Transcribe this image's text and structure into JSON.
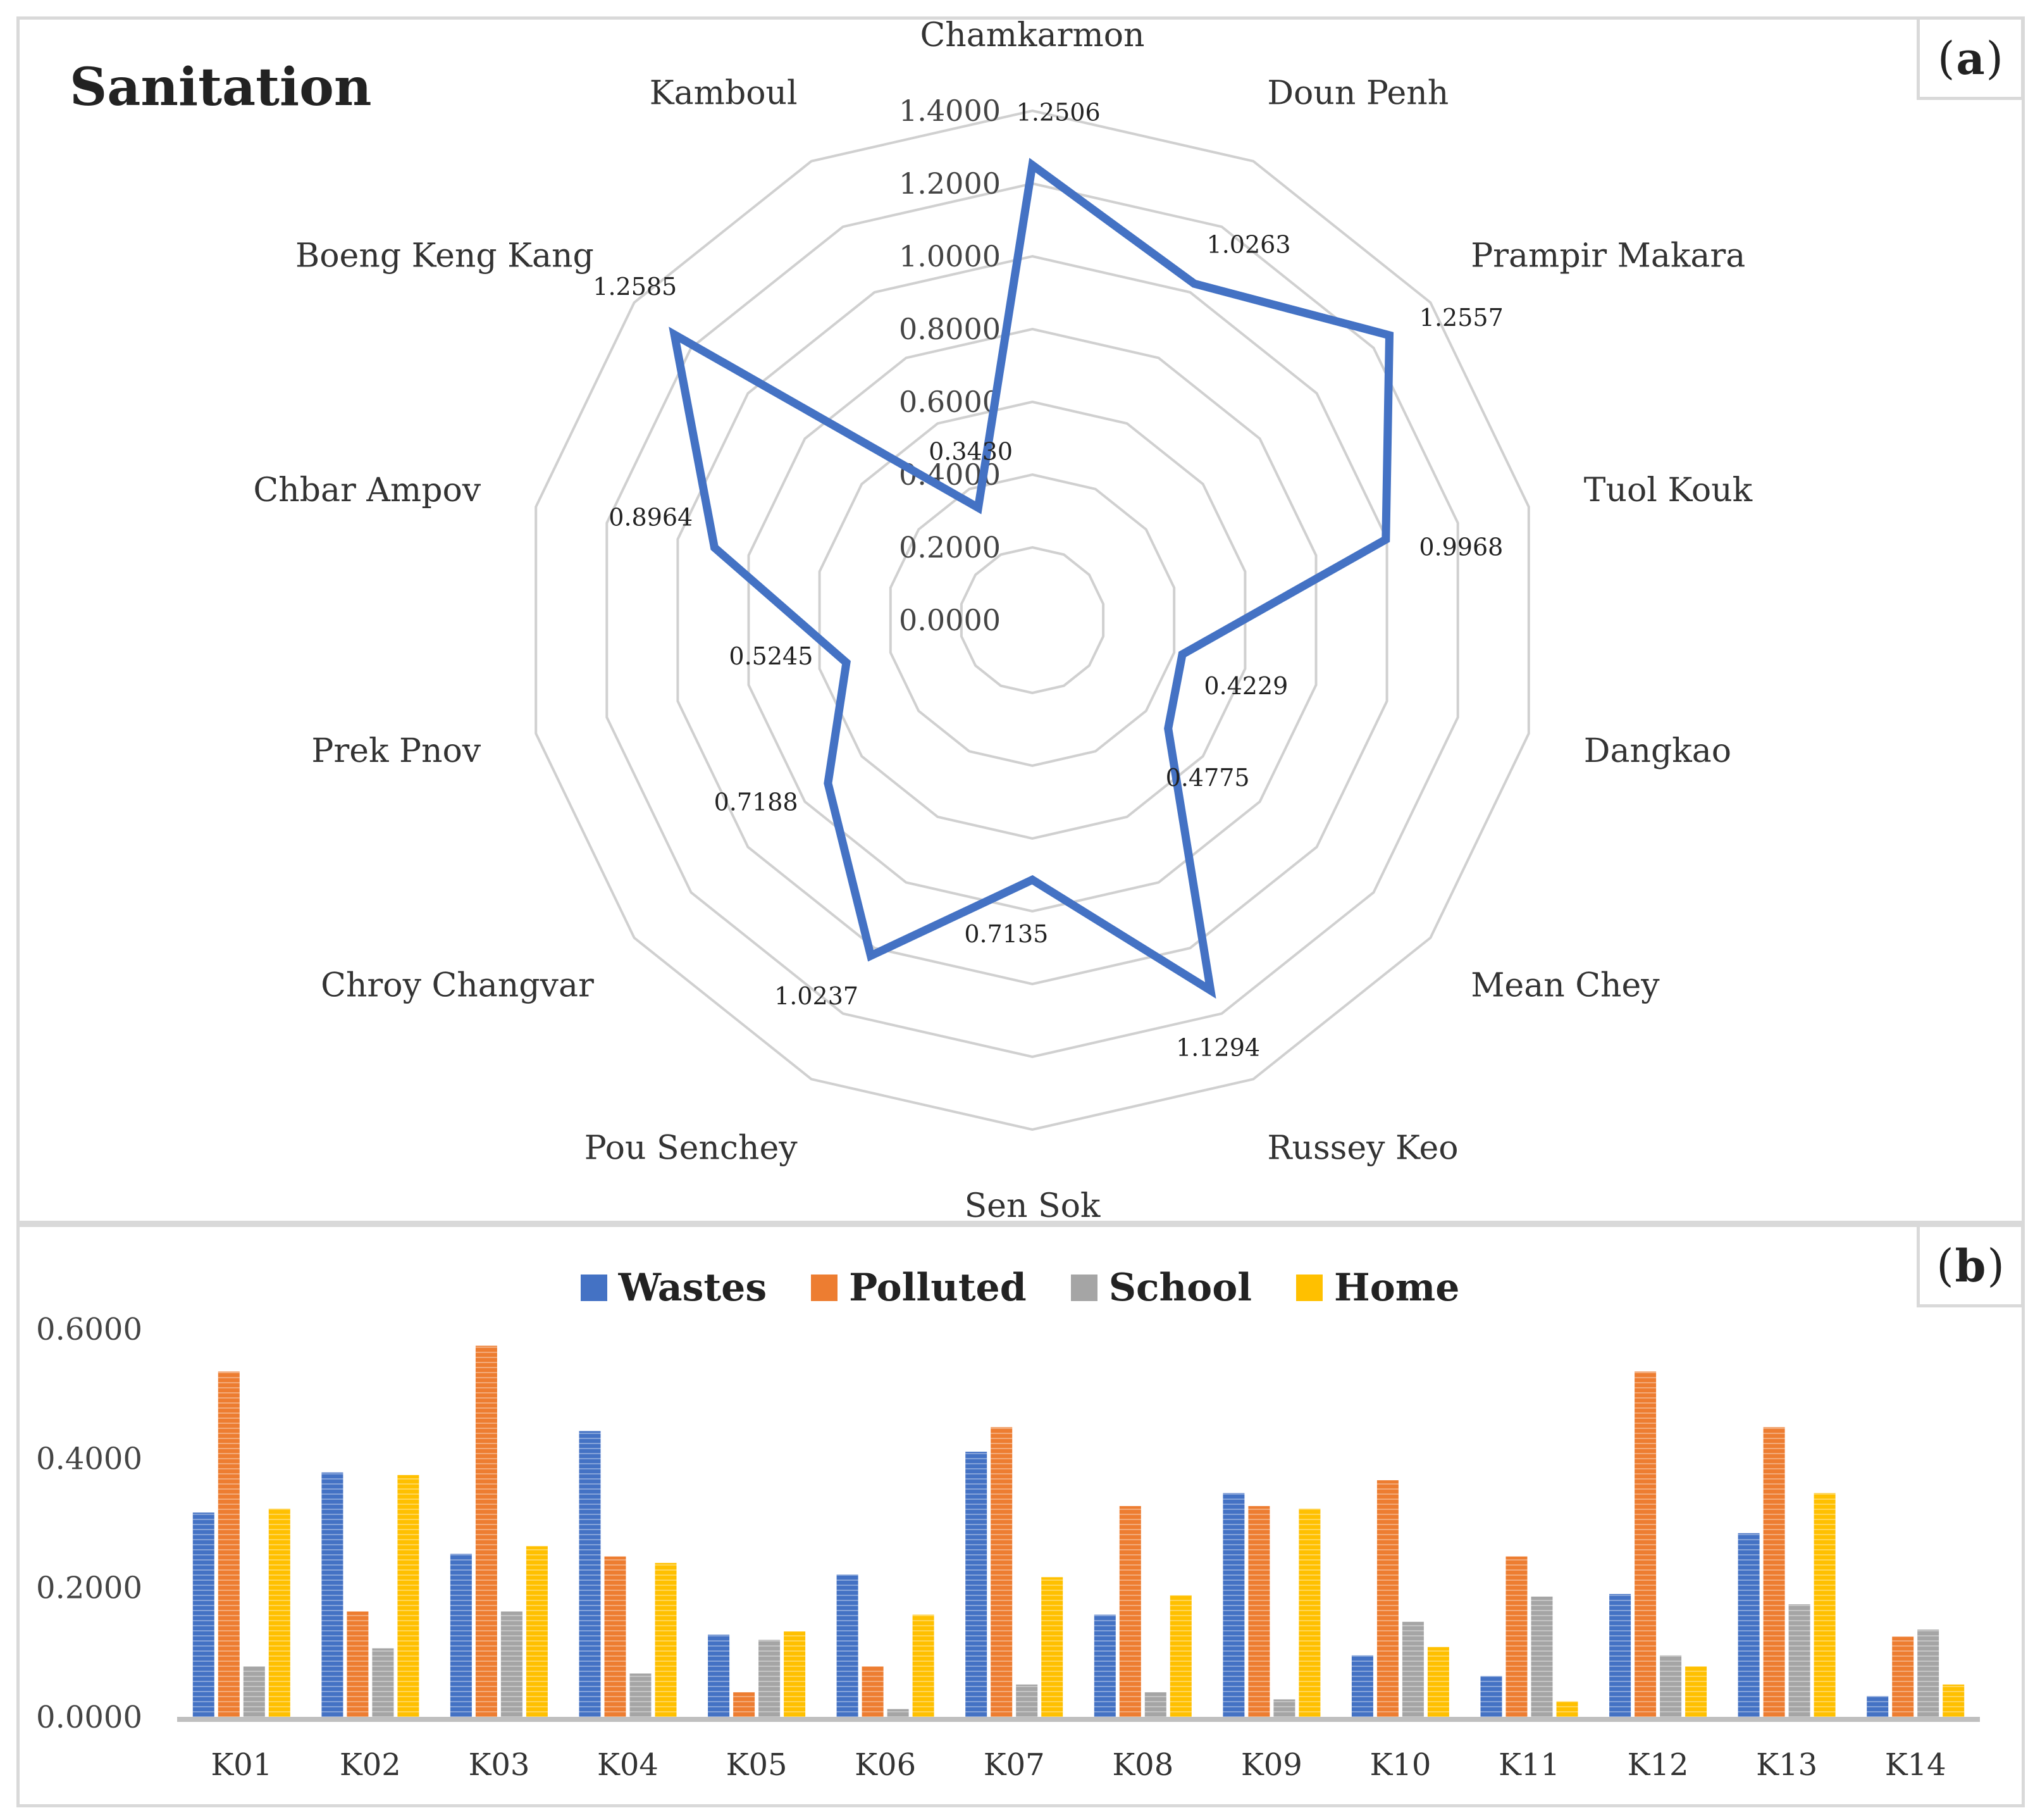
{
  "panels": {
    "a": {
      "tag": "a",
      "title": "Sanitation"
    },
    "b": {
      "tag": "b"
    }
  },
  "chart_data": [
    {
      "type": "radar",
      "title": "Sanitation",
      "rmax": 1.4,
      "ticks": [
        "0.0000",
        "0.2000",
        "0.4000",
        "0.6000",
        "0.8000",
        "1.0000",
        "1.2000",
        "1.4000"
      ],
      "categories": [
        "Chamkarmon",
        "Doun Penh",
        "Prampir Makara",
        "Tuol Kouk",
        "Dangkao",
        "Mean Chey",
        "Russey Keo",
        "Sen Sok",
        "Pou Senchey",
        "Chroy Changvar",
        "Prek Pnov",
        "Chbar Ampov",
        "Boeng Keng Kang",
        "Kamboul"
      ],
      "values": [
        1.2506,
        1.0263,
        1.2557,
        0.9968,
        0.4229,
        0.4775,
        1.1294,
        0.7135,
        1.0237,
        0.7188,
        0.5245,
        0.8964,
        1.2585,
        0.343
      ],
      "value_labels": [
        "1.2506",
        "1.0263",
        "1.2557",
        "0.9968",
        "0.4229",
        "0.4775",
        "1.1294",
        "0.7135",
        "1.0237",
        "0.7188",
        "0.5245",
        "0.8964",
        "1.2585",
        "0.3430"
      ],
      "series_color": "#4472C4",
      "grid_color": "#d0d0d0"
    },
    {
      "type": "bar",
      "categories": [
        "K01",
        "K02",
        "K03",
        "K04",
        "K05",
        "K06",
        "K07",
        "K08",
        "K09",
        "K10",
        "K11",
        "K12",
        "K13",
        "K14"
      ],
      "series": [
        {
          "name": "Wastes",
          "color": "#4472C4",
          "values": [
            0.316,
            0.378,
            0.252,
            0.442,
            0.127,
            0.22,
            0.41,
            0.158,
            0.346,
            0.095,
            0.063,
            0.19,
            0.284,
            0.032
          ]
        },
        {
          "name": "Polluted",
          "color": "#ED7D31",
          "values": [
            0.534,
            0.163,
            0.574,
            0.248,
            0.038,
            0.078,
            0.448,
            0.326,
            0.326,
            0.366,
            0.248,
            0.534,
            0.448,
            0.124
          ]
        },
        {
          "name": "School",
          "color": "#A5A5A5",
          "values": [
            0.078,
            0.106,
            0.163,
            0.067,
            0.119,
            0.012,
            0.05,
            0.038,
            0.027,
            0.147,
            0.186,
            0.095,
            0.174,
            0.135
          ]
        },
        {
          "name": "Home",
          "color": "#FFC000",
          "values": [
            0.322,
            0.374,
            0.264,
            0.238,
            0.132,
            0.158,
            0.216,
            0.188,
            0.322,
            0.108,
            0.024,
            0.078,
            0.346,
            0.05
          ]
        }
      ],
      "yticks": [
        "0.0000",
        "0.2000",
        "0.4000",
        "0.6000"
      ],
      "ylim": [
        0,
        0.6
      ],
      "legend_position": "top-center",
      "grid": false
    }
  ]
}
